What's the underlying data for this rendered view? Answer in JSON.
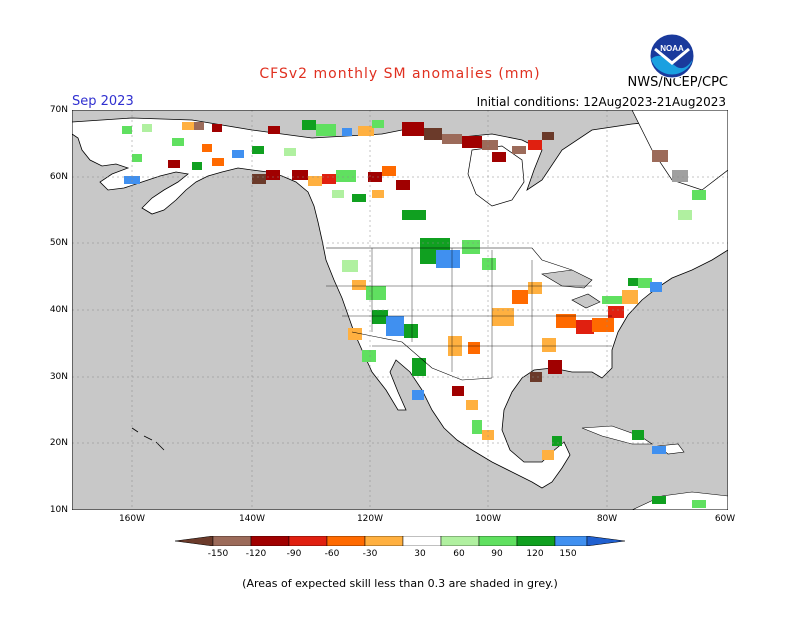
{
  "header": {
    "title": "CFSv2 monthly SM anomalies (mm)",
    "month": "Sep 2023",
    "initial_conditions": "Initial conditions: 12Aug2023-21Aug2023",
    "agency": "NWS/NCEP/CPC",
    "logo_text": "NOAA"
  },
  "axes": {
    "lat_labels": [
      "70N",
      "60N",
      "50N",
      "40N",
      "30N",
      "20N",
      "10N"
    ],
    "lon_labels": [
      "160W",
      "140W",
      "120W",
      "100W",
      "80W",
      "60W"
    ]
  },
  "legend": {
    "labels": [
      "-150",
      "-120",
      "-90",
      "-60",
      "-30",
      "30",
      "60",
      "90",
      "120",
      "150"
    ],
    "colors": [
      "#6b3a2a",
      "#9c6b5a",
      "#a00000",
      "#e02010",
      "#ff6a00",
      "#ffb040",
      "#ffffff",
      "#b0f0a0",
      "#60e060",
      "#10a020",
      "#4090f0",
      "#2060d0"
    ]
  },
  "footnote": "(Areas of expected skill less than 0.3 are shaded in grey.)"
}
